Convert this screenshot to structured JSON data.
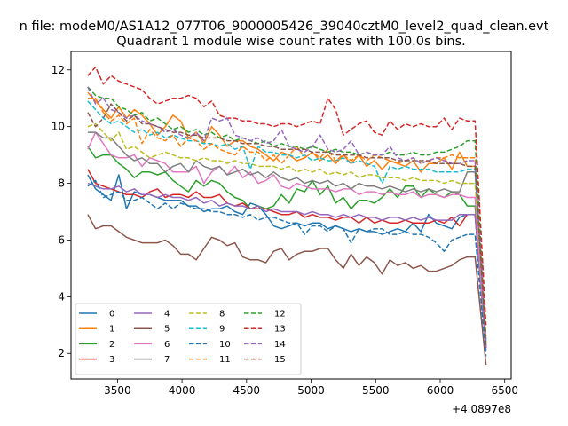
{
  "chart_data": {
    "type": "line",
    "suptitle": "n file: modeM0/AS1A12_077T06_9000005426_39040cztM0_level2_quad_clean.evt",
    "title": "Quadrant 1 module wise count rates with 100.0s bins.",
    "xlabel": "",
    "ylabel": "",
    "x_offset_label": "+4.0897e8",
    "xlim": [
      3140,
      6550
    ],
    "ylim": [
      1.1,
      12.65
    ],
    "xticks": [
      3500,
      4000,
      4500,
      5000,
      5500,
      6000,
      6500
    ],
    "xtick_labels": [
      "3500",
      "4000",
      "4500",
      "5000",
      "5500",
      "6000",
      "6500"
    ],
    "yticks": [
      2,
      4,
      6,
      8,
      10,
      12
    ],
    "ytick_labels": [
      "2",
      "4",
      "6",
      "8",
      "10",
      "12"
    ],
    "grid": false,
    "legend_location": "lower-left",
    "legend_columns": 4,
    "x": [
      3270,
      3330,
      3390,
      3450,
      3510,
      3570,
      3630,
      3690,
      3750,
      3810,
      3870,
      3930,
      3990,
      4050,
      4110,
      4170,
      4230,
      4290,
      4350,
      4410,
      4470,
      4530,
      4590,
      4650,
      4710,
      4770,
      4830,
      4890,
      4950,
      5010,
      5070,
      5130,
      5190,
      5250,
      5310,
      5370,
      5430,
      5490,
      5550,
      5610,
      5670,
      5730,
      5790,
      5850,
      5910,
      5970,
      6030,
      6090,
      6150,
      6210,
      6270,
      6355
    ],
    "series": [
      {
        "name": "0",
        "color": "#1f77b4",
        "dash": "solid",
        "values": [
          8.3,
          7.8,
          7.6,
          7.4,
          8.3,
          7.1,
          7.7,
          7.6,
          7.6,
          7.5,
          7.4,
          7.4,
          7.4,
          7.2,
          7.2,
          7.0,
          7.1,
          7.1,
          7.2,
          7.0,
          6.9,
          7.3,
          7.2,
          6.9,
          6.5,
          6.4,
          6.5,
          6.6,
          6.5,
          6.6,
          6.6,
          6.4,
          6.5,
          6.4,
          6.3,
          6.4,
          6.3,
          6.3,
          6.2,
          6.3,
          6.4,
          6.3,
          6.6,
          6.3,
          6.9,
          6.6,
          6.5,
          6.4,
          6.8,
          6.9,
          6.9,
          2.2
        ]
      },
      {
        "name": "1",
        "color": "#ff7f0e",
        "dash": "solid",
        "values": [
          11.2,
          10.9,
          10.6,
          10.3,
          10.7,
          10.3,
          10.6,
          10.4,
          10.1,
          9.7,
          10.0,
          10.4,
          10.2,
          9.6,
          9.8,
          9.4,
          10.0,
          9.7,
          9.3,
          9.5,
          9.5,
          9.3,
          9.2,
          9.0,
          8.8,
          9.1,
          9.0,
          8.8,
          8.9,
          9.1,
          8.8,
          9.0,
          8.7,
          9.0,
          8.7,
          9.0,
          8.6,
          8.8,
          8.5,
          8.8,
          8.7,
          8.6,
          8.8,
          8.4,
          8.7,
          8.7,
          8.9,
          8.5,
          9.1,
          8.6,
          8.6,
          2.3
        ]
      },
      {
        "name": "2",
        "color": "#2ca02c",
        "dash": "solid",
        "values": [
          9.3,
          8.9,
          9.0,
          9.0,
          8.7,
          8.5,
          8.2,
          8.4,
          8.4,
          8.3,
          8.4,
          8.1,
          7.9,
          7.7,
          8.1,
          7.9,
          8.1,
          8.0,
          7.7,
          7.5,
          7.4,
          7.1,
          7.2,
          7.1,
          7.2,
          7.6,
          7.3,
          7.8,
          7.7,
          8.1,
          7.6,
          7.9,
          7.3,
          7.5,
          7.1,
          7.4,
          7.4,
          7.3,
          7.5,
          7.8,
          7.5,
          7.9,
          7.9,
          7.5,
          7.8,
          7.6,
          7.5,
          7.7,
          7.6,
          7.2,
          7.2,
          2.4
        ]
      },
      {
        "name": "3",
        "color": "#d62728",
        "dash": "solid",
        "values": [
          8.5,
          8.0,
          7.9,
          7.8,
          7.7,
          7.6,
          7.6,
          7.5,
          7.7,
          7.8,
          7.5,
          7.6,
          7.6,
          7.5,
          7.7,
          7.5,
          7.5,
          7.6,
          7.3,
          7.2,
          7.3,
          7.1,
          7.1,
          7.1,
          7.0,
          6.9,
          6.9,
          7.0,
          6.8,
          6.9,
          6.8,
          6.8,
          6.7,
          6.8,
          6.8,
          6.6,
          6.8,
          6.6,
          6.7,
          6.6,
          6.6,
          6.7,
          6.6,
          6.6,
          6.6,
          6.7,
          6.6,
          6.8,
          6.5,
          6.9,
          6.9,
          2.2
        ]
      },
      {
        "name": "4",
        "color": "#9467bd",
        "dash": "solid",
        "values": [
          8.0,
          7.9,
          7.8,
          7.8,
          7.9,
          7.7,
          7.8,
          7.6,
          7.6,
          7.5,
          7.6,
          7.5,
          7.5,
          7.4,
          7.5,
          7.3,
          7.4,
          7.2,
          7.3,
          7.2,
          7.2,
          7.1,
          7.2,
          7.0,
          7.1,
          7.0,
          7.0,
          7.0,
          6.9,
          7.0,
          6.9,
          6.9,
          6.8,
          6.9,
          6.8,
          6.9,
          6.8,
          6.8,
          6.7,
          6.8,
          6.8,
          6.7,
          6.8,
          6.7,
          6.8,
          6.7,
          6.7,
          6.7,
          6.9,
          6.9,
          6.9,
          2.1
        ]
      },
      {
        "name": "5",
        "color": "#8c564b",
        "dash": "solid",
        "values": [
          6.9,
          6.4,
          6.5,
          6.5,
          6.3,
          6.1,
          6.0,
          5.9,
          5.9,
          5.9,
          6.0,
          5.8,
          5.5,
          5.5,
          5.3,
          5.7,
          6.1,
          6.0,
          5.8,
          5.9,
          5.4,
          5.3,
          5.3,
          5.2,
          5.6,
          5.7,
          5.3,
          5.5,
          5.6,
          5.6,
          5.7,
          5.7,
          5.3,
          5.0,
          5.5,
          5.1,
          5.4,
          5.2,
          4.8,
          5.3,
          5.1,
          5.2,
          5.0,
          5.1,
          4.9,
          4.9,
          5.0,
          5.1,
          5.3,
          5.4,
          5.4,
          1.6
        ]
      },
      {
        "name": "6",
        "color": "#e377c2",
        "dash": "solid",
        "values": [
          9.2,
          9.8,
          9.4,
          9.0,
          8.9,
          8.9,
          9.0,
          8.6,
          8.9,
          8.8,
          8.7,
          8.4,
          8.4,
          8.4,
          8.6,
          8.0,
          8.4,
          8.6,
          8.3,
          8.6,
          8.2,
          8.4,
          8.0,
          8.1,
          8.3,
          7.9,
          7.8,
          8.0,
          7.9,
          7.8,
          7.8,
          7.8,
          7.7,
          7.8,
          7.8,
          7.6,
          7.7,
          7.7,
          7.6,
          7.7,
          7.6,
          7.6,
          7.7,
          7.5,
          7.6,
          7.6,
          7.5,
          7.6,
          7.6,
          7.5,
          7.5,
          2.2
        ]
      },
      {
        "name": "7",
        "color": "#7f7f7f",
        "dash": "solid",
        "values": [
          9.8,
          9.8,
          9.6,
          9.6,
          9.3,
          9.0,
          8.8,
          8.9,
          8.7,
          8.7,
          8.4,
          8.6,
          8.7,
          8.4,
          8.8,
          8.6,
          8.5,
          8.6,
          8.3,
          8.4,
          8.5,
          8.3,
          8.4,
          8.2,
          8.4,
          8.2,
          8.1,
          8.2,
          8.0,
          8.1,
          8.0,
          8.1,
          7.9,
          8.0,
          7.8,
          8.0,
          7.9,
          7.9,
          7.8,
          7.9,
          7.8,
          7.7,
          7.8,
          7.7,
          7.8,
          7.7,
          7.8,
          7.7,
          7.7,
          8.4,
          8.4,
          2.3
        ]
      },
      {
        "name": "8",
        "color": "#bcbd22",
        "dash": "dashed",
        "values": [
          10.0,
          10.1,
          9.8,
          9.5,
          9.8,
          9.2,
          9.3,
          9.1,
          8.9,
          9.0,
          9.1,
          9.0,
          8.9,
          8.9,
          8.8,
          8.9,
          8.8,
          8.8,
          8.7,
          8.8,
          8.7,
          8.7,
          8.6,
          8.6,
          8.6,
          8.5,
          8.6,
          8.4,
          8.5,
          8.4,
          8.5,
          8.3,
          8.4,
          8.3,
          8.4,
          8.2,
          8.3,
          8.3,
          8.2,
          8.2,
          8.2,
          8.1,
          8.2,
          8.1,
          8.1,
          8.1,
          8.0,
          8.1,
          8.0,
          8.0,
          8.0,
          2.3
        ]
      },
      {
        "name": "9",
        "color": "#17becf",
        "dash": "dashed",
        "values": [
          10.9,
          10.6,
          10.3,
          10.1,
          10.2,
          10.0,
          9.8,
          9.9,
          9.7,
          9.8,
          9.6,
          9.7,
          9.6,
          9.5,
          9.5,
          9.4,
          9.4,
          9.3,
          9.4,
          9.2,
          9.3,
          8.5,
          9.3,
          9.1,
          9.1,
          9.0,
          9.0,
          8.9,
          9.0,
          8.8,
          8.9,
          8.8,
          8.8,
          8.9,
          8.7,
          8.8,
          8.7,
          8.6,
          8.0,
          8.6,
          8.5,
          8.6,
          8.5,
          8.5,
          8.5,
          8.4,
          8.4,
          8.4,
          8.4,
          8.5,
          8.5,
          2.4
        ]
      },
      {
        "name": "10",
        "color": "#1f77b4",
        "dash": "dashed",
        "values": [
          7.9,
          8.1,
          7.5,
          7.6,
          7.7,
          7.4,
          7.4,
          7.5,
          7.3,
          7.1,
          7.3,
          7.1,
          7.3,
          7.2,
          7.1,
          7.1,
          7.0,
          7.0,
          6.9,
          6.9,
          6.8,
          6.9,
          6.7,
          6.8,
          6.8,
          6.7,
          6.6,
          6.6,
          6.2,
          6.5,
          6.5,
          6.3,
          6.5,
          6.4,
          5.9,
          6.4,
          6.3,
          6.4,
          6.4,
          6.2,
          6.2,
          6.3,
          6.2,
          6.2,
          6.1,
          5.9,
          5.6,
          6.0,
          6.1,
          6.2,
          6.2,
          1.9
        ]
      },
      {
        "name": "11",
        "color": "#ff7f0e",
        "dash": "dashed",
        "values": [
          11.0,
          11.0,
          10.5,
          10.2,
          10.4,
          10.1,
          10.3,
          9.4,
          9.9,
          9.6,
          9.5,
          9.7,
          9.3,
          9.6,
          9.5,
          9.2,
          9.4,
          9.2,
          9.1,
          9.0,
          9.3,
          9.1,
          9.1,
          8.8,
          9.0,
          8.7,
          9.0,
          9.3,
          8.9,
          9.1,
          8.9,
          9.2,
          8.8,
          9.0,
          8.8,
          9.0,
          8.8,
          9.0,
          8.9,
          8.8,
          8.7,
          8.8,
          8.9,
          8.7,
          8.8,
          8.9,
          8.9,
          9.0,
          8.9,
          8.9,
          8.9,
          2.6
        ]
      },
      {
        "name": "12",
        "color": "#2ca02c",
        "dash": "dashed",
        "values": [
          11.4,
          11.1,
          11.0,
          11.0,
          10.7,
          10.6,
          10.4,
          10.5,
          10.2,
          10.3,
          10.1,
          9.9,
          10.0,
          9.8,
          9.9,
          9.7,
          9.8,
          9.6,
          9.7,
          9.5,
          9.6,
          9.5,
          9.4,
          9.5,
          9.3,
          9.4,
          9.3,
          9.3,
          9.2,
          9.3,
          9.2,
          9.1,
          9.2,
          9.1,
          9.1,
          9.0,
          9.1,
          9.0,
          9.0,
          9.1,
          9.0,
          9.0,
          9.1,
          9.0,
          9.0,
          9.1,
          9.1,
          9.2,
          9.3,
          9.5,
          9.5,
          2.5
        ]
      },
      {
        "name": "13",
        "color": "#d62728",
        "dash": "dashed",
        "values": [
          11.8,
          12.1,
          11.5,
          11.8,
          11.6,
          11.5,
          11.4,
          11.3,
          11.0,
          10.8,
          10.9,
          11.0,
          11.0,
          11.1,
          11.0,
          10.7,
          10.9,
          10.4,
          10.3,
          10.3,
          10.2,
          10.2,
          10.1,
          10.1,
          10.0,
          10.1,
          10.1,
          10.0,
          10.1,
          10.2,
          10.1,
          11.0,
          10.6,
          9.7,
          9.9,
          10.1,
          10.2,
          9.8,
          9.7,
          10.2,
          9.9,
          10.1,
          10.0,
          10.1,
          10.0,
          10.0,
          10.3,
          9.9,
          10.3,
          10.2,
          10.2,
          3.0
        ]
      },
      {
        "name": "14",
        "color": "#9467bd",
        "dash": "dashed",
        "values": [
          11.4,
          10.8,
          11.0,
          10.6,
          10.5,
          10.3,
          10.4,
          10.2,
          10.1,
          10.0,
          9.8,
          9.9,
          9.7,
          9.6,
          9.8,
          9.5,
          10.3,
          10.2,
          10.3,
          9.7,
          9.6,
          9.5,
          9.6,
          9.4,
          9.5,
          9.9,
          9.3,
          9.2,
          9.1,
          9.3,
          9.7,
          9.2,
          9.1,
          9.2,
          9.5,
          9.0,
          9.1,
          9.0,
          9.0,
          9.3,
          8.9,
          8.8,
          8.9,
          8.7,
          8.8,
          8.9,
          8.8,
          8.7,
          8.7,
          8.8,
          8.8,
          2.2
        ]
      },
      {
        "name": "15",
        "color": "#8c564b",
        "dash": "dashed",
        "values": [
          10.5,
          10.0,
          10.3,
          10.8,
          10.5,
          10.2,
          10.4,
          10.1,
          10.1,
          10.0,
          9.9,
          9.8,
          9.8,
          9.7,
          9.7,
          9.6,
          9.6,
          9.6,
          9.5,
          9.5,
          9.4,
          9.4,
          9.4,
          9.3,
          9.3,
          9.2,
          9.2,
          9.2,
          9.2,
          9.1,
          9.1,
          9.1,
          9.0,
          9.0,
          9.0,
          9.0,
          8.9,
          8.9,
          8.9,
          8.9,
          8.8,
          8.8,
          8.8,
          8.8,
          8.8,
          8.7,
          8.7,
          8.7,
          8.7,
          8.6,
          8.6,
          2.2
        ]
      }
    ]
  }
}
